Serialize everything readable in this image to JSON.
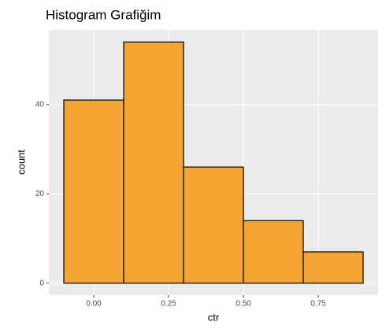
{
  "chart_data": {
    "type": "histogram",
    "title": "Histogram Grafiğim",
    "x_label": "ctr",
    "y_label": "count",
    "bins": [
      -0.1,
      0.1,
      0.3,
      0.5,
      0.7,
      0.9
    ],
    "values": [
      41,
      54,
      26,
      14,
      7
    ],
    "color": "#F4A533",
    "edge_color": "#000000",
    "xlim": [
      -0.15,
      0.95
    ],
    "xticks": [
      {
        "value": 0,
        "label": "0.00"
      },
      0.25,
      {
        "value": 0.5,
        "label": "0.50"
      },
      0.75
    ],
    "ylim": [
      -2.7,
      56.7
    ],
    "yticks": [
      0,
      20,
      40
    ],
    "grid": true
  }
}
